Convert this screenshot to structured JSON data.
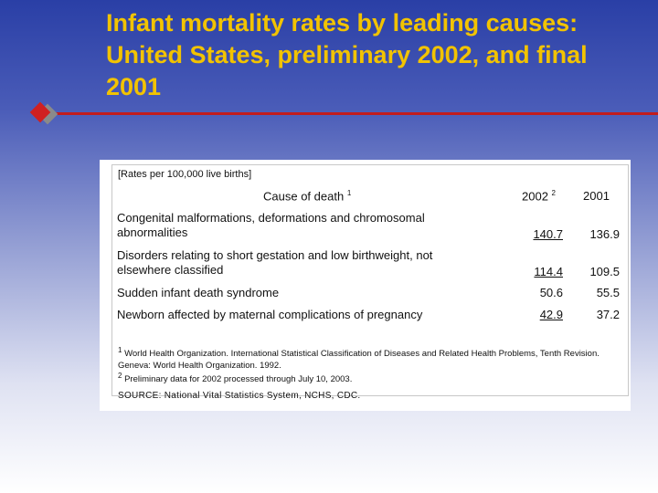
{
  "slide": {
    "title": "Infant mortality rates by leading causes: United States, preliminary 2002, and final 2001"
  },
  "table": {
    "unit_note": "[Rates per 100,000 live births]",
    "header": {
      "cause": "Cause of death",
      "cause_sup": "1",
      "y2002": "2002",
      "y2002_sup": "2",
      "y2001": "2001"
    },
    "rows": [
      {
        "cause": "Congenital malformations, deformations and chromosomal abnormalities",
        "v2002": "140.7",
        "v2001": "136.9"
      },
      {
        "cause": "Disorders relating to short gestation and low birthweight, not elsewhere classified",
        "v2002": "114.4",
        "v2001": "109.5"
      },
      {
        "cause": "Sudden infant death syndrome",
        "v2002": "50.6",
        "v2001": "55.5"
      },
      {
        "cause": "Newborn affected by maternal complications of pregnancy",
        "v2002": "42.9",
        "v2001": "37.2"
      }
    ],
    "footnotes": [
      {
        "mark": "1",
        "text": "World Health Organization. International Statistical Classification of Diseases and Related Health Problems, Tenth Revision. Geneva: World Health Organization. 1992."
      },
      {
        "mark": "2",
        "text": "Preliminary data for 2002 processed through July 10, 2003."
      }
    ],
    "source": "SOURCE: National Vital Statistics System, NCHS, CDC."
  },
  "colors": {
    "title": "#f2c300",
    "rule": "#c21c1c",
    "background_top": "#2a3fa6"
  }
}
